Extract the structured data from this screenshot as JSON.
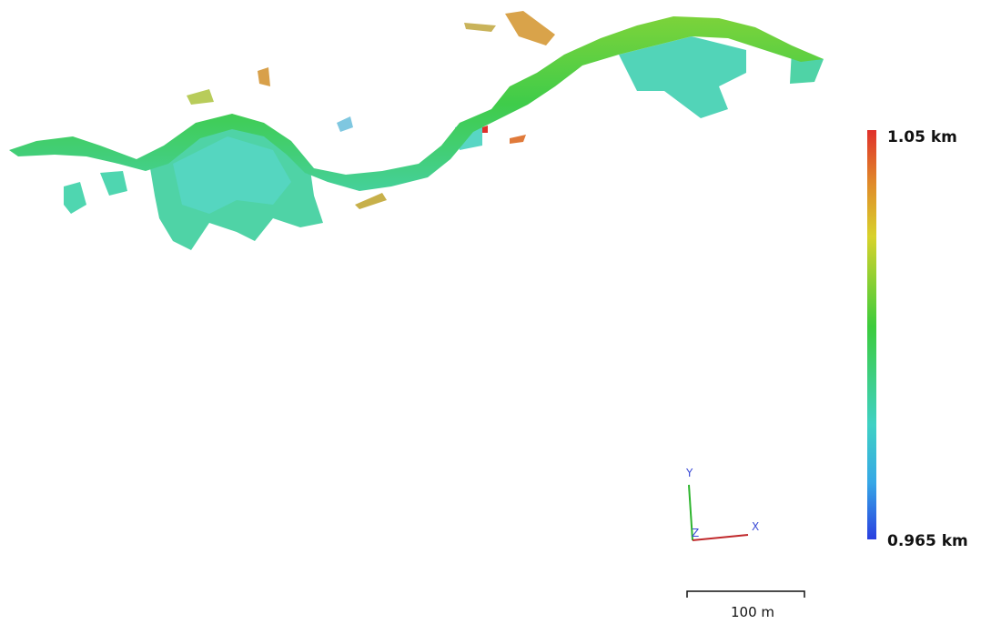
{
  "legend": {
    "max_label": "1.05 km",
    "min_label": "0.965 km"
  },
  "scale_bar": {
    "label": "100 m"
  },
  "axes": {
    "y": "Y",
    "x": "X",
    "z": "Z"
  }
}
